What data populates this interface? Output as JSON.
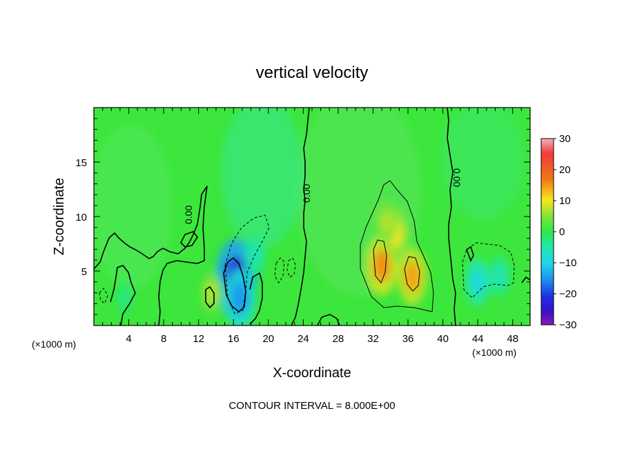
{
  "chart_data": {
    "type": "heatmap",
    "title": "vertical velocity",
    "xlabel": "X-coordinate",
    "ylabel": "Z-coordinate",
    "x_unit_left": "(×1000 m)",
    "x_unit_right": "(×1000 m)",
    "xlim": [
      0,
      50
    ],
    "ylim": [
      0,
      20
    ],
    "x_ticks": [
      4,
      8,
      12,
      16,
      20,
      24,
      28,
      32,
      36,
      40,
      44,
      48
    ],
    "y_ticks": [
      5,
      10,
      15
    ],
    "colorbar": {
      "range": [
        -30,
        30
      ],
      "ticks": [
        30,
        20,
        10,
        0,
        -10,
        -20,
        -30
      ],
      "tick_labels": [
        "30",
        "20",
        "10",
        "0",
        "−10",
        "−20",
        "−30"
      ]
    },
    "contour_labels": [
      "0.00",
      "0.00",
      "0.00"
    ],
    "footer": "CONTOUR INTERVAL = 8.000E+00",
    "features": [
      {
        "x": 16.3,
        "z": 4.3,
        "value": -22
      },
      {
        "x": 16.7,
        "z": 2.5,
        "value": -14
      },
      {
        "x": 18.5,
        "z": 6.5,
        "value": -6
      },
      {
        "x": 3.5,
        "z": 2.5,
        "value": -3
      },
      {
        "x": 44.0,
        "z": 4.0,
        "value": -9
      },
      {
        "x": 46.5,
        "z": 4.5,
        "value": -6
      },
      {
        "x": 33.0,
        "z": 5.5,
        "value": 14
      },
      {
        "x": 36.5,
        "z": 4.5,
        "value": 13
      },
      {
        "x": 34.5,
        "z": 8.5,
        "value": 10
      },
      {
        "x": 33.5,
        "z": 9.5,
        "value": 7
      },
      {
        "x": 13.5,
        "z": 3.0,
        "value": 7
      }
    ]
  }
}
